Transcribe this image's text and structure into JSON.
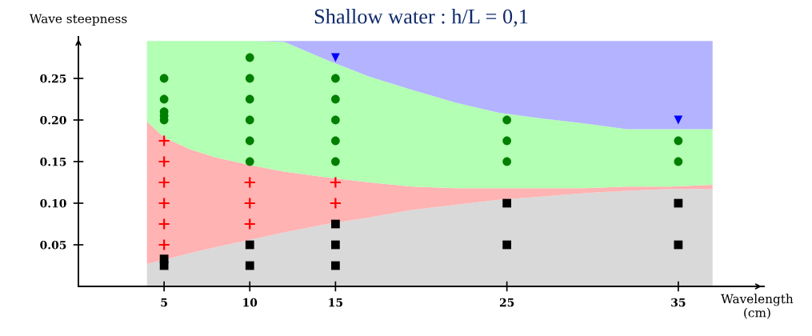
{
  "chart_data": {
    "type": "scatter",
    "title": "Shallow water : h/L = 0,1",
    "xlabel": "Wavelength\n(cm)",
    "ylabel": "Wave steepness",
    "xlim": [
      0,
      40
    ],
    "ylim": [
      0,
      0.3
    ],
    "xticks": [
      5,
      10,
      15,
      25,
      35
    ],
    "yticks": [
      0.05,
      {
        "value": 0.1,
        "label": "0.10"
      },
      0.15,
      {
        "value": 0.2,
        "label": "0.20"
      },
      0.25
    ],
    "stacked": true,
    "series": [
      {
        "type": "area",
        "color": "#d9d9d9",
        "x": [
          4,
          5,
          6.5,
          8,
          10,
          12,
          14.5,
          17,
          19.5,
          22,
          24.5,
          27,
          29.5,
          32,
          34.5,
          37
        ],
        "values": [
          0.027,
          0.032,
          0.04,
          0.047,
          0.056,
          0.065,
          0.075,
          0.083,
          0.092,
          0.098,
          0.104,
          0.108,
          0.112,
          0.115,
          0.117,
          0.117
        ]
      },
      {
        "type": "area",
        "color": "#ffb3b3",
        "x": [
          4,
          5,
          6.5,
          8,
          10,
          12,
          14.5,
          17,
          19.5,
          22,
          24.5,
          27,
          29.5,
          32,
          34.5,
          37
        ],
        "values": [
          0.171,
          0.147,
          0.125,
          0.108,
          0.09,
          0.073,
          0.056,
          0.042,
          0.028,
          0.02,
          0.014,
          0.01,
          0.006,
          0.005,
          0.003,
          0.005
        ]
      },
      {
        "type": "area",
        "color": "#b3ffb3",
        "x": [
          4,
          5,
          6.5,
          8,
          10,
          12,
          14.5,
          17,
          19.5,
          22,
          24.5,
          27,
          29.5,
          32,
          34.5,
          37
        ],
        "values": [
          0.097,
          0.116,
          0.13,
          0.14,
          0.149,
          0.156,
          0.141,
          0.127,
          0.116,
          0.103,
          0.091,
          0.084,
          0.078,
          0.069,
          0.069,
          0.067
        ]
      },
      {
        "type": "area",
        "color": "#b3b3ff",
        "x": [
          4,
          5,
          6.5,
          8,
          10,
          12,
          14.5,
          17,
          19.5,
          22,
          24.5,
          27,
          29.5,
          32,
          34.5,
          37
        ],
        "values": [
          0,
          0,
          0,
          0,
          0,
          0.001,
          0.023,
          0.043,
          0.059,
          0.074,
          0.086,
          0.093,
          0.099,
          0.106,
          0.106,
          0.106
        ]
      },
      {
        "marker": "circle",
        "color": "#007f00",
        "x": [
          5,
          5,
          5,
          5,
          5,
          10,
          10,
          10,
          10,
          10,
          10,
          15,
          15,
          15,
          15,
          15,
          25,
          25,
          25,
          35,
          35
        ],
        "values": [
          0.25,
          0.225,
          0.21,
          0.205,
          0.2,
          0.275,
          0.25,
          0.225,
          0.2,
          0.175,
          0.15,
          0.25,
          0.225,
          0.2,
          0.175,
          0.15,
          0.2,
          0.175,
          0.15,
          0.175,
          0.15
        ]
      },
      {
        "marker": "cross",
        "color": "#ff0000",
        "x": [
          5,
          5,
          5,
          5,
          5,
          5,
          10,
          10,
          10,
          15,
          15
        ],
        "values": [
          0.175,
          0.15,
          0.125,
          0.1,
          0.075,
          0.05,
          0.125,
          0.1,
          0.075,
          0.125,
          0.1
        ]
      },
      {
        "marker": "square",
        "color": "#000000",
        "x": [
          5,
          5,
          10,
          10,
          15,
          15,
          15,
          25,
          25,
          35,
          35
        ],
        "values": [
          0.033,
          0.025,
          0.05,
          0.025,
          0.075,
          0.05,
          0.025,
          0.1,
          0.05,
          0.1,
          0.05
        ]
      },
      {
        "marker": "triangle",
        "color": "#0000ff",
        "x": [
          15,
          35
        ],
        "values": [
          0.275,
          0.2
        ]
      }
    ]
  }
}
